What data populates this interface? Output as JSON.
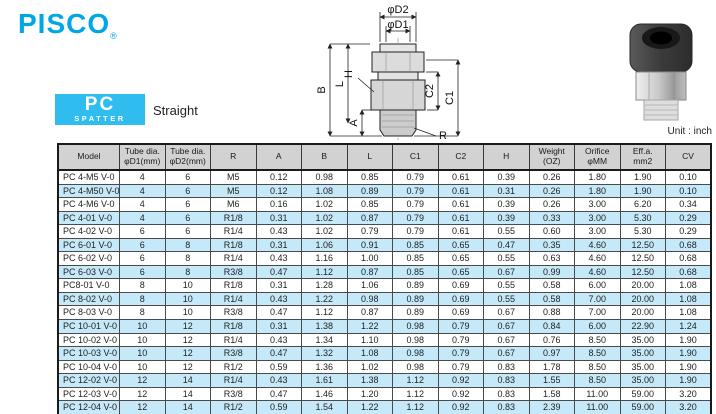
{
  "brand": {
    "logo_text": "PISCO",
    "registered_mark": "®"
  },
  "series_badge": {
    "code": "PC",
    "sub": "SPATTER"
  },
  "subtitle": "Straight",
  "unit_label": "Unit : inch",
  "colors": {
    "brand_cyan": "#00a7e7",
    "badge_cyan": "#2fbdef",
    "row_highlight": "#c5e9f9",
    "header_gray": "#d2d2d2"
  },
  "diagram": {
    "labels": {
      "d2": "φD2",
      "d1": "φD1",
      "b": "B",
      "l": "L",
      "a": "A",
      "h": "H",
      "r": "R",
      "c1": "C1",
      "c2": "C2"
    }
  },
  "table": {
    "headers": [
      "Model",
      "Tube dia.\nφD1(mm)",
      "Tube dia.\nφD2(mm)",
      "R",
      "A",
      "B",
      "L",
      "C1",
      "C2",
      "H",
      "Weight\n(OZ)",
      "Orifice\nφMM",
      "Eff.a.\nmm2",
      "CV"
    ],
    "rows": [
      [
        "PC 4-M5 V-0",
        "4",
        "6",
        "M5",
        "0.12",
        "0.98",
        "0.85",
        "0.79",
        "0.61",
        "0.39",
        "0.26",
        "1.80",
        "1.90",
        "0.10"
      ],
      [
        "PC 4-M50 V-0",
        "4",
        "6",
        "M5",
        "0.12",
        "1.08",
        "0.89",
        "0.79",
        "0.61",
        "0.31",
        "0.26",
        "1.80",
        "1.90",
        "0.10"
      ],
      [
        "PC 4-M6 V-0",
        "4",
        "6",
        "M6",
        "0.16",
        "1.02",
        "0.85",
        "0.79",
        "0.61",
        "0.39",
        "0.26",
        "3.00",
        "6.20",
        "0.34"
      ],
      [
        "PC 4-01 V-0",
        "4",
        "6",
        "R1/8",
        "0.31",
        "1.02",
        "0.87",
        "0.79",
        "0.61",
        "0.39",
        "0.33",
        "3.00",
        "5.30",
        "0.29"
      ],
      [
        "PC 4-02 V-0",
        "6",
        "6",
        "R1/4",
        "0.43",
        "1.02",
        "0.79",
        "0.79",
        "0.61",
        "0.55",
        "0.60",
        "3.00",
        "5.30",
        "0.29"
      ],
      [
        "PC 6-01 V-0",
        "6",
        "8",
        "R1/8",
        "0.31",
        "1.06",
        "0.91",
        "0.85",
        "0.65",
        "0.47",
        "0.35",
        "4.60",
        "12.50",
        "0.68"
      ],
      [
        "PC 6-02 V-0",
        "6",
        "8",
        "R1/4",
        "0.43",
        "1.16",
        "1.00",
        "0.85",
        "0.65",
        "0.55",
        "0.63",
        "4.60",
        "12.50",
        "0.68"
      ],
      [
        "PC 6-03 V-0",
        "6",
        "8",
        "R3/8",
        "0.47",
        "1.12",
        "0.87",
        "0.85",
        "0.65",
        "0.67",
        "0.99",
        "4.60",
        "12.50",
        "0.68"
      ],
      [
        "PC8-01 V-0",
        "8",
        "10",
        "R1/8",
        "0.31",
        "1.28",
        "1.06",
        "0.89",
        "0.69",
        "0.55",
        "0.58",
        "6.00",
        "20.00",
        "1.08"
      ],
      [
        "PC 8-02 V-0",
        "8",
        "10",
        "R1/4",
        "0.43",
        "1.22",
        "0.98",
        "0.89",
        "0.69",
        "0.55",
        "0.58",
        "7.00",
        "20.00",
        "1.08"
      ],
      [
        "PC 8-03 V-0",
        "8",
        "10",
        "R3/8",
        "0.47",
        "1.12",
        "0.87",
        "0.89",
        "0.69",
        "0.67",
        "0.88",
        "7.00",
        "20.00",
        "1.08"
      ],
      [
        "PC 10-01 V-0",
        "10",
        "12",
        "R1/8",
        "0.31",
        "1.38",
        "1.22",
        "0.98",
        "0.79",
        "0.67",
        "0.84",
        "6.00",
        "22.90",
        "1.24"
      ],
      [
        "PC 10-02 V-0",
        "10",
        "12",
        "R1/4",
        "0.43",
        "1.34",
        "1.10",
        "0.98",
        "0.79",
        "0.67",
        "0.76",
        "8.50",
        "35.00",
        "1.90"
      ],
      [
        "PC 10-03 V-0",
        "10",
        "12",
        "R3/8",
        "0.47",
        "1.32",
        "1.08",
        "0.98",
        "0.79",
        "0.67",
        "0.97",
        "8.50",
        "35.00",
        "1.90"
      ],
      [
        "PC 10-04 V-0",
        "10",
        "12",
        "R1/2",
        "0.59",
        "1.36",
        "1.02",
        "0.98",
        "0.79",
        "0.83",
        "1.78",
        "8.50",
        "35.00",
        "1.90"
      ],
      [
        "PC 12-02 V-0",
        "12",
        "14",
        "R1/4",
        "0.43",
        "1.61",
        "1.38",
        "1.12",
        "0.92",
        "0.83",
        "1.55",
        "8.50",
        "35.00",
        "1.90"
      ],
      [
        "PC 12-03 V-0",
        "12",
        "14",
        "R3/8",
        "0.47",
        "1.46",
        "1.20",
        "1.12",
        "0.92",
        "0.83",
        "1.58",
        "11.00",
        "59.00",
        "3.20"
      ],
      [
        "PC 12-04 V-0",
        "12",
        "14",
        "R1/2",
        "0.59",
        "1.54",
        "1.22",
        "1.12",
        "0.92",
        "0.83",
        "2.39",
        "11.00",
        "59.00",
        "3.20"
      ]
    ]
  }
}
